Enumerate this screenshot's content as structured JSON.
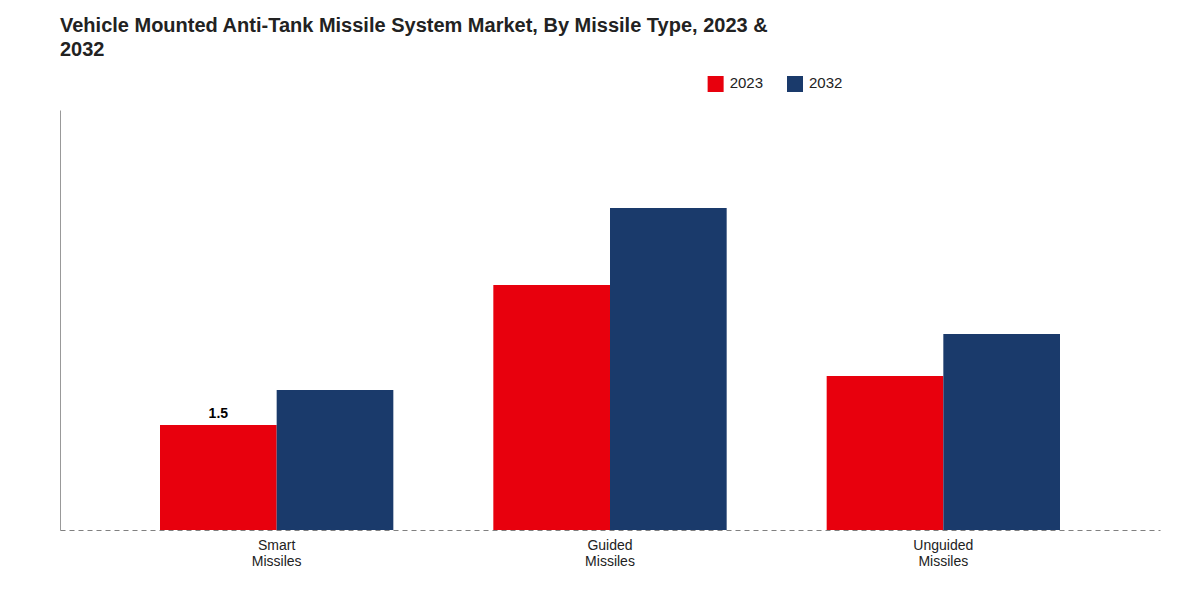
{
  "chart_data": {
    "type": "bar",
    "title": "Vehicle Mounted Anti-Tank Missile System Market, By Missile Type, 2023 &\n2032",
    "categories": [
      "Smart\nMissiles",
      "Guided\nMissiles",
      "Unguided\nMissiles"
    ],
    "series": [
      {
        "name": "2023",
        "color": "#e8000d",
        "values": [
          1.5,
          3.5,
          2.2
        ]
      },
      {
        "name": "2032",
        "color": "#1a3a6b",
        "values": [
          2.0,
          4.6,
          2.8
        ]
      }
    ],
    "annotations": [
      {
        "text": "1.5",
        "series": "2023",
        "category": "Smart\nMissiles",
        "y": 1.5
      }
    ],
    "ylim": [
      0,
      6
    ],
    "grid": false,
    "legend": "top",
    "tick_labels": "x"
  }
}
